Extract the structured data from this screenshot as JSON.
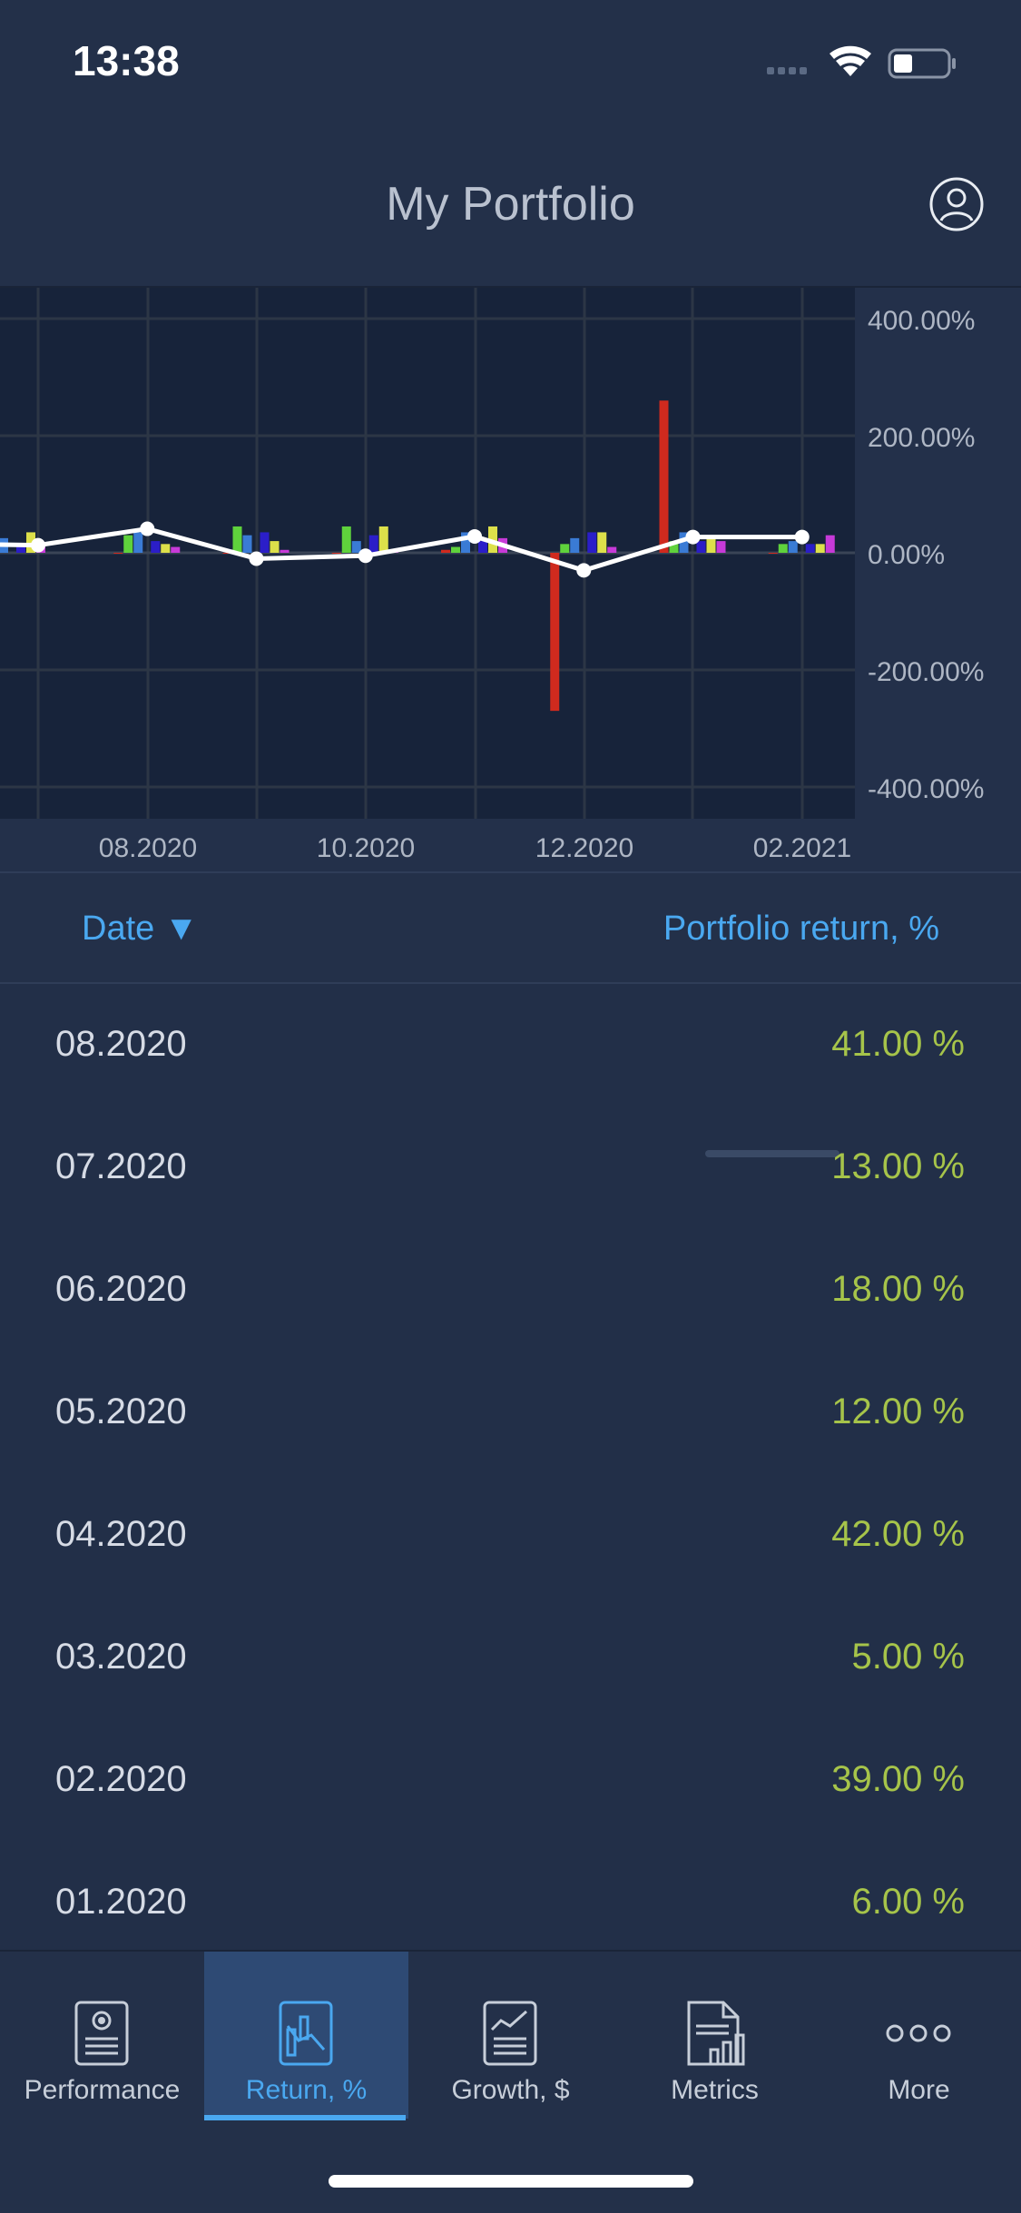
{
  "status": {
    "time": "13:38"
  },
  "header": {
    "title": "My Portfolio"
  },
  "table": {
    "date_header": "Date ▼",
    "return_header": "Portfolio return, %",
    "rows": [
      {
        "date": "08.2020",
        "value": "41.00 %"
      },
      {
        "date": "07.2020",
        "value": "13.00 %"
      },
      {
        "date": "06.2020",
        "value": "18.00 %"
      },
      {
        "date": "05.2020",
        "value": "12.00 %"
      },
      {
        "date": "04.2020",
        "value": "42.00 %"
      },
      {
        "date": "03.2020",
        "value": "5.00 %"
      },
      {
        "date": "02.2020",
        "value": "39.00 %"
      },
      {
        "date": "01.2020",
        "value": "6.00 %"
      }
    ]
  },
  "tabs": [
    {
      "label": "Performance",
      "icon": "performance-icon"
    },
    {
      "label": "Return, %",
      "icon": "return-chart-icon"
    },
    {
      "label": "Growth, $",
      "icon": "growth-chart-icon"
    },
    {
      "label": "Metrics",
      "icon": "metrics-icon"
    },
    {
      "label": "More",
      "icon": "more-icon"
    }
  ],
  "active_tab": 1,
  "chart_data": {
    "type": "bar",
    "x": [
      "07.2020",
      "08.2020",
      "09.2020",
      "10.2020",
      "11.2020",
      "12.2020",
      "01.2021",
      "02.2021"
    ],
    "x_tick_labels": [
      "08.2020",
      "10.2020",
      "12.2020",
      "02.2021"
    ],
    "y_tick_labels": [
      "400.00%",
      "200.00%",
      "0.00%",
      "-200.00%",
      "-400.00%"
    ],
    "ylim": [
      -400,
      400
    ],
    "grid": true,
    "portfolio_line": {
      "values": [
        13,
        41,
        -10,
        -5,
        28,
        -30,
        27,
        27
      ],
      "color": "#ffffff"
    },
    "series_colors": [
      "#d02a1e",
      "#5fd23c",
      "#3a7bd5",
      "#2b1ec8",
      "#dde04a",
      "#c73ad8"
    ],
    "series": [
      {
        "values": [
          20,
          0,
          0,
          0,
          5,
          -270,
          260,
          0
        ]
      },
      {
        "values": [
          5,
          30,
          45,
          45,
          10,
          15,
          20,
          15
        ]
      },
      {
        "values": [
          25,
          35,
          30,
          20,
          35,
          25,
          35,
          20
        ]
      },
      {
        "values": [
          10,
          20,
          35,
          30,
          20,
          35,
          20,
          15
        ]
      },
      {
        "values": [
          35,
          15,
          20,
          45,
          45,
          35,
          25,
          15
        ]
      },
      {
        "values": [
          15,
          10,
          5,
          5,
          25,
          10,
          20,
          30
        ]
      }
    ]
  }
}
